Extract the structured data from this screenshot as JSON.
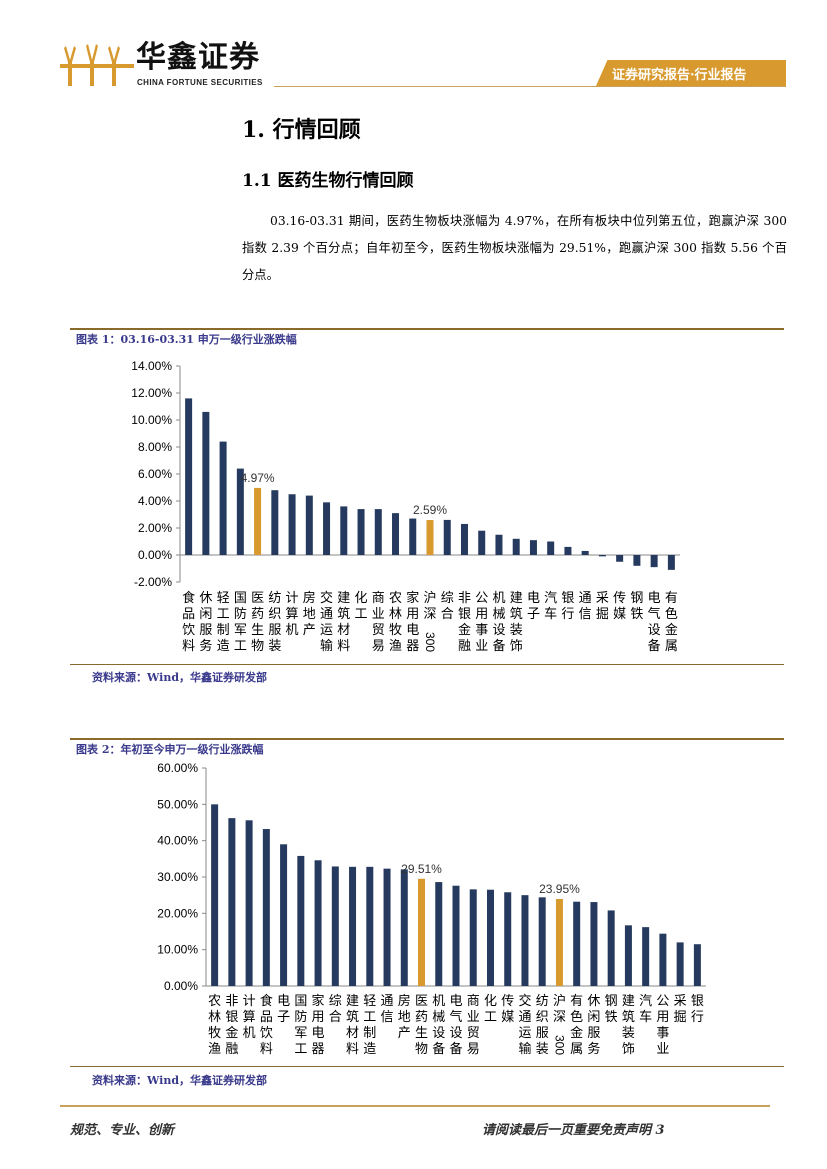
{
  "header": {
    "logo_cn": "华鑫证券",
    "logo_en": "CHINA FORTUNE SECURITIES",
    "tag": "证券研究报告·行业报告"
  },
  "section": {
    "title": "1. 行情回顾",
    "subtitle": "1.1 医药生物行情回顾",
    "body": "03.16-03.31 期间，医药生物板块涨幅为 4.97%，在所有板块中位列第五位，跑赢沪深 300 指数 2.39 个百分点；自年初至今，医药生物板块涨幅为 29.51%，跑赢沪深 300 指数 5.56 个百分点。"
  },
  "figure1": {
    "title": "图表 1：03.16-03.31 申万一级行业涨跌幅",
    "source": "资料来源：Wind，华鑫证券研发部"
  },
  "figure2": {
    "title": "图表 2：年初至今申万一级行业涨跌幅",
    "source": "资料来源：Wind，华鑫证券研发部"
  },
  "footer": {
    "left": "规范、专业、创新",
    "right": "请阅读最后一页重要免责声明 3"
  },
  "colors": {
    "bar": "#253a5e",
    "highlight": "#d89a2e",
    "accent": "#c8a15a"
  },
  "chart_data": [
    {
      "type": "bar",
      "categories": [
        "食品饮料",
        "休闲服务",
        "轻工制造",
        "国防军工",
        "医药生物",
        "纺织服装",
        "计算机",
        "房地产",
        "交通运输",
        "建筑材料",
        "化工",
        "商业贸易",
        "农林牧渔",
        "家用电器",
        "沪深300",
        "综合",
        "非银金融",
        "公用事业",
        "机械设备",
        "建筑装饰",
        "电子",
        "汽车",
        "银行",
        "通信",
        "采掘",
        "传媒",
        "钢铁",
        "电气设备",
        "有色金属"
      ],
      "values": [
        11.6,
        10.6,
        8.4,
        6.4,
        4.97,
        4.8,
        4.5,
        4.4,
        3.9,
        3.6,
        3.4,
        3.4,
        3.1,
        2.7,
        2.59,
        2.6,
        2.3,
        1.8,
        1.5,
        1.2,
        1.1,
        1.0,
        0.6,
        0.3,
        -0.1,
        -0.5,
        -0.8,
        -0.9,
        -1.1
      ],
      "highlights": {
        "医药生物": "4.97%",
        "沪深300": "2.59%"
      },
      "ylim": [
        -2,
        14
      ],
      "yticks": [
        "14.00%",
        "12.00%",
        "10.00%",
        "8.00%",
        "6.00%",
        "4.00%",
        "2.00%",
        "0.00%",
        "-2.00%"
      ],
      "ytick_values": [
        14,
        12,
        10,
        8,
        6,
        4,
        2,
        0,
        -2
      ]
    },
    {
      "type": "bar",
      "categories": [
        "农林牧渔",
        "非银金融",
        "计算机",
        "食品饮料",
        "电子",
        "国防军工",
        "家用电器",
        "综合",
        "建筑材料",
        "轻工制造",
        "通信",
        "房地产",
        "医药生物",
        "机械设备",
        "电气设备",
        "商业贸易",
        "化工",
        "传媒",
        "交通运输",
        "纺织服装",
        "沪深300",
        "有色金属",
        "休闲服务",
        "钢铁",
        "建筑装饰",
        "汽车",
        "公用事业",
        "采掘",
        "银行"
      ],
      "values": [
        50.0,
        46.2,
        45.6,
        43.2,
        39.0,
        35.8,
        34.6,
        32.9,
        32.8,
        32.8,
        32.3,
        32.1,
        29.51,
        28.6,
        27.6,
        26.6,
        26.5,
        25.8,
        25.0,
        24.4,
        23.95,
        23.2,
        23.1,
        20.8,
        16.7,
        16.2,
        14.4,
        12.0,
        11.5
      ],
      "highlights": {
        "医药生物": "29.51%",
        "沪深300": "23.95%"
      },
      "ylim": [
        0,
        60
      ],
      "yticks": [
        "60.00%",
        "50.00%",
        "40.00%",
        "30.00%",
        "20.00%",
        "10.00%",
        "0.00%"
      ],
      "ytick_values": [
        60,
        50,
        40,
        30,
        20,
        10,
        0
      ]
    }
  ]
}
